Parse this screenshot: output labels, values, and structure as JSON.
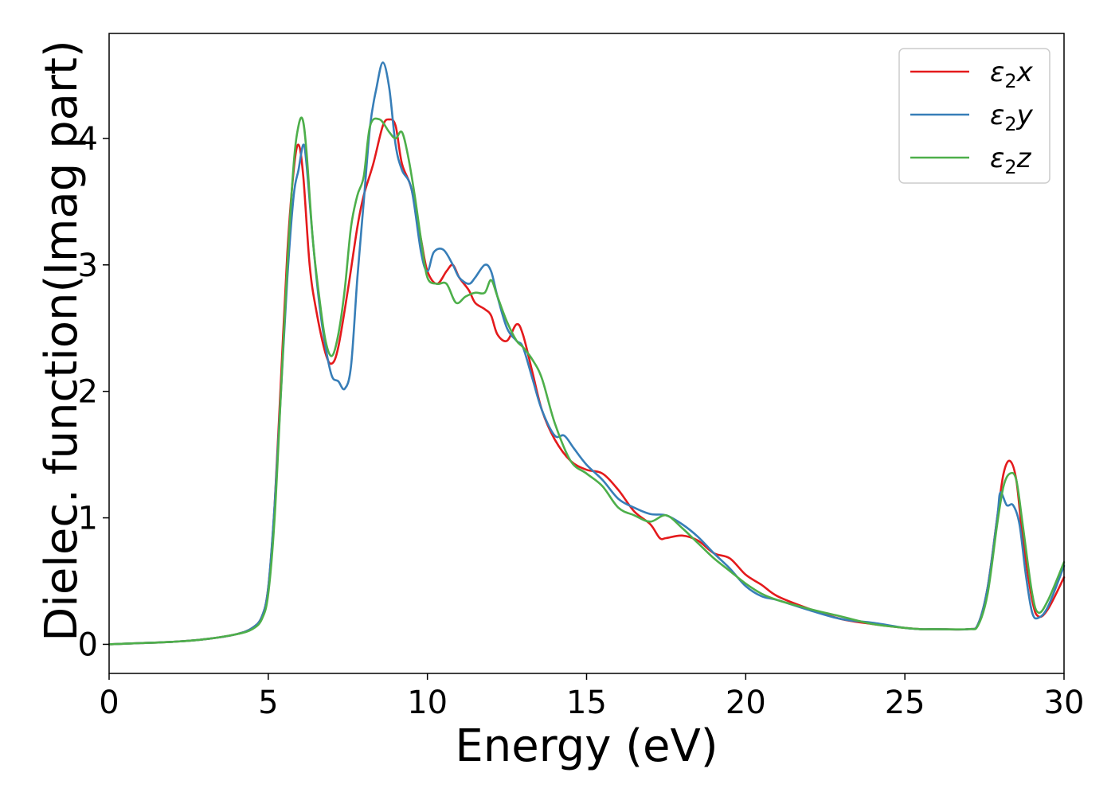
{
  "chart_data": {
    "type": "line",
    "title": "",
    "xlabel": "Energy (eV)",
    "ylabel": "Dielec. function(Imag part)",
    "xlim": [
      0,
      30
    ],
    "ylim": [
      -0.23,
      4.83
    ],
    "xticks": [
      0,
      5,
      10,
      15,
      20,
      25,
      30
    ],
    "yticks": [
      0,
      1,
      2,
      3,
      4
    ],
    "grid": false,
    "legend_position": "top-right",
    "series": [
      {
        "name": "ε₂x",
        "legend_base": "ε",
        "legend_sub": "2",
        "legend_var": "x",
        "color": "#e41a1c",
        "x": [
          0,
          1,
          2,
          3,
          4,
          4.5,
          4.8,
          5.0,
          5.2,
          5.4,
          5.6,
          5.8,
          5.95,
          6.1,
          6.3,
          6.5,
          6.8,
          7.0,
          7.2,
          7.5,
          7.8,
          8.0,
          8.3,
          8.6,
          8.8,
          9.0,
          9.2,
          9.5,
          9.8,
          10.0,
          10.3,
          10.6,
          10.8,
          11.0,
          11.3,
          11.5,
          11.8,
          12.0,
          12.2,
          12.5,
          12.8,
          13.0,
          13.3,
          13.6,
          14.0,
          14.5,
          15.0,
          15.5,
          16.0,
          16.5,
          17.0,
          17.3,
          17.5,
          18.0,
          18.5,
          19.0,
          19.5,
          20.0,
          20.5,
          21.0,
          22.0,
          23.0,
          24.0,
          25.0,
          25.5,
          26.0,
          27.0,
          27.3,
          27.6,
          27.9,
          28.1,
          28.3,
          28.5,
          28.7,
          29.0,
          29.2,
          29.5,
          30.0
        ],
        "y": [
          0.0,
          0.01,
          0.02,
          0.04,
          0.08,
          0.13,
          0.22,
          0.45,
          1.1,
          2.1,
          3.1,
          3.75,
          3.95,
          3.7,
          3.0,
          2.65,
          2.3,
          2.22,
          2.35,
          2.8,
          3.3,
          3.55,
          3.8,
          4.1,
          4.15,
          4.1,
          3.8,
          3.6,
          3.2,
          2.95,
          2.85,
          2.95,
          3.0,
          2.9,
          2.8,
          2.7,
          2.65,
          2.6,
          2.45,
          2.4,
          2.53,
          2.45,
          2.15,
          1.85,
          1.62,
          1.45,
          1.38,
          1.35,
          1.22,
          1.05,
          0.95,
          0.84,
          0.84,
          0.86,
          0.82,
          0.72,
          0.68,
          0.55,
          0.47,
          0.38,
          0.28,
          0.2,
          0.16,
          0.13,
          0.12,
          0.12,
          0.12,
          0.16,
          0.45,
          1.0,
          1.35,
          1.45,
          1.3,
          0.85,
          0.35,
          0.22,
          0.28,
          0.53
        ]
      },
      {
        "name": "ε₂y",
        "legend_base": "ε",
        "legend_sub": "2",
        "legend_var": "y",
        "color": "#377eb8",
        "x": [
          0,
          1,
          2,
          3,
          4,
          4.5,
          4.8,
          5.0,
          5.2,
          5.4,
          5.6,
          5.8,
          5.95,
          6.1,
          6.2,
          6.4,
          6.6,
          6.8,
          7.0,
          7.2,
          7.4,
          7.6,
          7.8,
          8.0,
          8.2,
          8.4,
          8.6,
          8.8,
          9.0,
          9.2,
          9.5,
          9.8,
          10.0,
          10.2,
          10.5,
          10.8,
          11.0,
          11.3,
          11.5,
          11.8,
          12.0,
          12.2,
          12.5,
          12.8,
          13.0,
          13.3,
          13.6,
          14.0,
          14.3,
          14.6,
          15.0,
          15.5,
          16.0,
          16.5,
          17.0,
          17.5,
          18.0,
          18.5,
          19.0,
          19.5,
          20.0,
          20.5,
          21.0,
          22.0,
          23.0,
          24.0,
          25.0,
          25.5,
          26.0,
          27.0,
          27.3,
          27.6,
          27.9,
          28.0,
          28.2,
          28.4,
          28.6,
          28.8,
          29.0,
          29.2,
          29.5,
          30.0
        ],
        "y": [
          0.0,
          0.01,
          0.02,
          0.04,
          0.08,
          0.13,
          0.22,
          0.45,
          1.1,
          2.0,
          2.9,
          3.55,
          3.75,
          3.95,
          3.8,
          3.2,
          2.7,
          2.35,
          2.12,
          2.08,
          2.02,
          2.2,
          2.9,
          3.5,
          4.1,
          4.4,
          4.6,
          4.4,
          3.95,
          3.75,
          3.6,
          3.1,
          2.95,
          3.1,
          3.12,
          3.0,
          2.9,
          2.85,
          2.9,
          3.0,
          2.95,
          2.75,
          2.5,
          2.4,
          2.35,
          2.1,
          1.85,
          1.65,
          1.65,
          1.55,
          1.42,
          1.3,
          1.15,
          1.08,
          1.03,
          1.02,
          0.95,
          0.85,
          0.72,
          0.6,
          0.46,
          0.38,
          0.35,
          0.27,
          0.2,
          0.17,
          0.13,
          0.12,
          0.12,
          0.12,
          0.16,
          0.45,
          1.0,
          1.2,
          1.1,
          1.1,
          0.95,
          0.55,
          0.25,
          0.21,
          0.3,
          0.62
        ]
      },
      {
        "name": "ε₂z",
        "legend_base": "ε",
        "legend_sub": "2",
        "legend_var": "z",
        "color": "#4daf4a",
        "x": [
          0,
          1,
          2,
          3,
          4,
          4.5,
          4.8,
          5.0,
          5.2,
          5.4,
          5.6,
          5.8,
          5.95,
          6.08,
          6.2,
          6.4,
          6.6,
          6.8,
          7.0,
          7.2,
          7.4,
          7.6,
          7.8,
          8.0,
          8.2,
          8.5,
          8.8,
          9.0,
          9.2,
          9.4,
          9.6,
          9.8,
          10.0,
          10.3,
          10.6,
          10.9,
          11.2,
          11.5,
          11.8,
          12.0,
          12.2,
          12.5,
          12.8,
          13.0,
          13.3,
          13.6,
          14.0,
          14.5,
          15.0,
          15.5,
          16.0,
          16.5,
          17.0,
          17.5,
          18.0,
          18.5,
          19.0,
          19.5,
          20.0,
          20.5,
          21.0,
          22.0,
          23.0,
          24.0,
          25.0,
          25.5,
          26.0,
          27.0,
          27.3,
          27.6,
          27.9,
          28.1,
          28.3,
          28.5,
          28.7,
          29.0,
          29.2,
          29.5,
          30.0
        ],
        "y": [
          0.0,
          0.01,
          0.02,
          0.04,
          0.08,
          0.12,
          0.2,
          0.4,
          1.0,
          2.0,
          3.0,
          3.8,
          4.1,
          4.15,
          3.9,
          3.2,
          2.75,
          2.4,
          2.28,
          2.45,
          2.8,
          3.3,
          3.55,
          3.7,
          4.1,
          4.15,
          4.05,
          4.0,
          4.05,
          3.85,
          3.55,
          3.2,
          2.9,
          2.85,
          2.85,
          2.7,
          2.75,
          2.78,
          2.78,
          2.88,
          2.75,
          2.55,
          2.4,
          2.35,
          2.25,
          2.1,
          1.75,
          1.45,
          1.35,
          1.25,
          1.08,
          1.02,
          0.97,
          1.02,
          0.92,
          0.8,
          0.68,
          0.58,
          0.48,
          0.4,
          0.35,
          0.28,
          0.22,
          0.16,
          0.13,
          0.12,
          0.12,
          0.12,
          0.15,
          0.4,
          0.95,
          1.25,
          1.35,
          1.3,
          0.95,
          0.4,
          0.25,
          0.35,
          0.65
        ]
      }
    ]
  }
}
